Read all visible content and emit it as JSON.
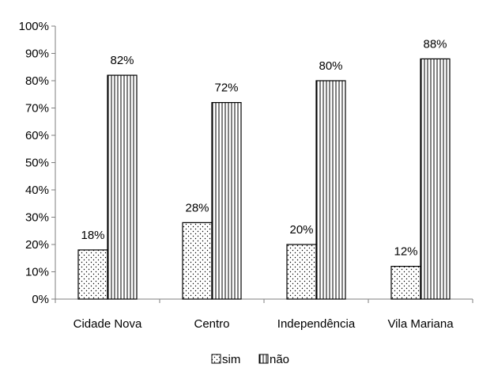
{
  "chart_data": {
    "type": "bar",
    "title": "",
    "xlabel": "",
    "ylabel": "",
    "categories": [
      "Cidade Nova",
      "Centro",
      "Independência",
      "Vila Mariana"
    ],
    "series": [
      {
        "name": "sim",
        "values": [
          18,
          28,
          20,
          12
        ],
        "labels": [
          "18%",
          "28%",
          "20%",
          "12%"
        ],
        "pattern": "dots"
      },
      {
        "name": "não",
        "values": [
          82,
          72,
          80,
          88
        ],
        "labels": [
          "82%",
          "72%",
          "80%",
          "88%"
        ],
        "pattern": "vertical-lines"
      }
    ],
    "ylim": [
      0,
      100
    ],
    "yticks": [
      "0%",
      "10%",
      "20%",
      "30%",
      "40%",
      "50%",
      "60%",
      "70%",
      "80%",
      "90%",
      "100%"
    ],
    "grid": false,
    "legend_position": "bottom"
  }
}
